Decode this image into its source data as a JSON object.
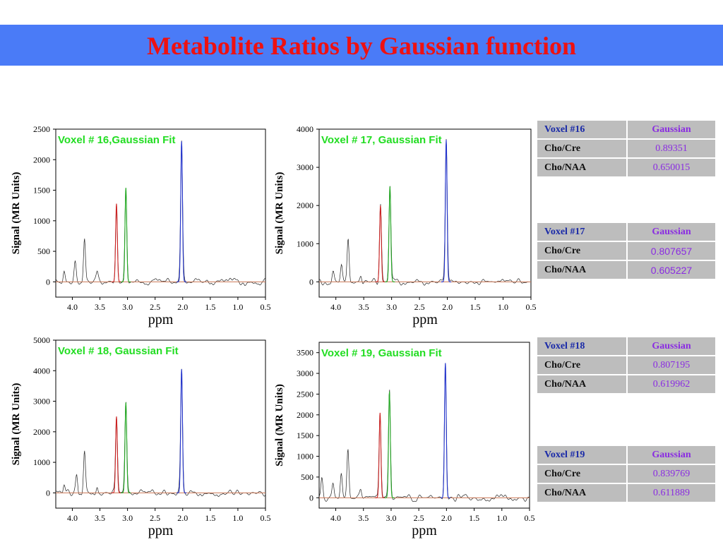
{
  "header": {
    "title": "Metabolite Ratios by Gaussian function"
  },
  "colors": {
    "banner": "#4a7bf7",
    "title": "#ee1111",
    "fit_label": "#22dd22",
    "cho_peak": "#cc2222",
    "cre_peak": "#22aa22",
    "naa_peak": "#2233cc",
    "baseline": "#cc7755",
    "spectrum": "#222222",
    "table_bg": "#bdbdbd",
    "table_value": "#8a2be2",
    "table_voxel": "#1a2aa8"
  },
  "chart_data": [
    {
      "type": "line",
      "title": "Voxel # 16,Gaussian Fit",
      "xlabel": "ppm",
      "ylabel": "Signal (MR Units)",
      "xlim": [
        4.3,
        0.5
      ],
      "x_reversed": true,
      "ylim": [
        -250,
        2500
      ],
      "xticks": [
        4.0,
        3.5,
        3.0,
        2.5,
        2.0,
        1.5,
        1.0,
        0.5
      ],
      "xtick_labels": [
        "4.0",
        "3.5",
        "3.0",
        "2.5",
        "2.0",
        "1.5",
        "1.0",
        "0.5"
      ],
      "yticks": [
        0,
        500,
        1000,
        1500,
        2000,
        2500
      ],
      "peaks": [
        {
          "name": "Cho",
          "ppm": 3.2,
          "height": 1280
        },
        {
          "name": "Cre",
          "ppm": 3.03,
          "height": 1540
        },
        {
          "name": "NAA",
          "ppm": 2.02,
          "height": 2300
        }
      ],
      "other_peaks": [
        {
          "ppm": 4.15,
          "height": 200
        },
        {
          "ppm": 3.95,
          "height": 300
        },
        {
          "ppm": 3.78,
          "height": 720
        },
        {
          "ppm": 3.55,
          "height": 150
        }
      ]
    },
    {
      "type": "line",
      "title": "Voxel # 17, Gaussian Fit",
      "xlabel": "ppm",
      "ylabel": "Signal (MR Units)",
      "xlim": [
        4.3,
        0.5
      ],
      "x_reversed": true,
      "ylim": [
        -400,
        4000
      ],
      "xticks": [
        4.0,
        3.5,
        3.0,
        2.5,
        2.0,
        1.5,
        1.0,
        0.5
      ],
      "xtick_labels": [
        "4.0",
        "3.5",
        "3.0",
        "2.5",
        "2.0",
        "1.5",
        "1.0",
        "0.5"
      ],
      "yticks": [
        0,
        1000,
        2000,
        3000,
        4000
      ],
      "peaks": [
        {
          "name": "Cho",
          "ppm": 3.2,
          "height": 2000
        },
        {
          "name": "Cre",
          "ppm": 3.03,
          "height": 2500
        },
        {
          "name": "NAA",
          "ppm": 2.02,
          "height": 3720
        }
      ],
      "other_peaks": [
        {
          "ppm": 4.05,
          "height": 280
        },
        {
          "ppm": 3.9,
          "height": 450
        },
        {
          "ppm": 3.78,
          "height": 1130
        },
        {
          "ppm": 3.55,
          "height": 200
        }
      ]
    },
    {
      "type": "line",
      "title": "Voxel # 18, Gaussian Fit",
      "xlabel": "ppm",
      "ylabel": "Signal (MR Units)",
      "xlim": [
        4.3,
        0.5
      ],
      "x_reversed": true,
      "ylim": [
        -500,
        5000
      ],
      "xticks": [
        4.0,
        3.5,
        3.0,
        2.5,
        2.0,
        1.5,
        1.0,
        0.5
      ],
      "xtick_labels": [
        "4.0",
        "3.5",
        "3.0",
        "2.5",
        "2.0",
        "1.5",
        "1.0",
        "0.5"
      ],
      "yticks": [
        0,
        1000,
        2000,
        3000,
        4000,
        5000
      ],
      "peaks": [
        {
          "name": "Cho",
          "ppm": 3.2,
          "height": 2500
        },
        {
          "name": "Cre",
          "ppm": 3.03,
          "height": 2960
        },
        {
          "name": "NAA",
          "ppm": 2.02,
          "height": 4050
        }
      ],
      "other_peaks": [
        {
          "ppm": 4.15,
          "height": 350
        },
        {
          "ppm": 3.92,
          "height": 600
        },
        {
          "ppm": 3.78,
          "height": 1380
        },
        {
          "ppm": 3.55,
          "height": 250
        }
      ]
    },
    {
      "type": "line",
      "title": "Voxel # 19, Gaussian Fit",
      "xlabel": "ppm",
      "ylabel": "Signal (MR Units)",
      "xlim": [
        4.3,
        0.5
      ],
      "x_reversed": true,
      "ylim": [
        -250,
        3750
      ],
      "xticks": [
        4.0,
        3.5,
        3.0,
        2.5,
        2.0,
        1.5,
        1.0,
        0.5
      ],
      "xtick_labels": [
        "4.0",
        "3.5",
        "3.0",
        "2.5",
        "2.0",
        "1.5",
        "1.0",
        "0.5"
      ],
      "yticks": [
        0,
        500,
        1000,
        1500,
        2000,
        2500,
        3000,
        3500
      ],
      "peaks": [
        {
          "name": "Cho",
          "ppm": 3.2,
          "height": 2050
        },
        {
          "name": "Cre",
          "ppm": 3.03,
          "height": 2560
        },
        {
          "name": "NAA",
          "ppm": 2.02,
          "height": 3250
        }
      ],
      "other_peaks": [
        {
          "ppm": 4.25,
          "height": 500
        },
        {
          "ppm": 4.05,
          "height": 350
        },
        {
          "ppm": 3.9,
          "height": 600
        },
        {
          "ppm": 3.78,
          "height": 1180
        },
        {
          "ppm": 3.55,
          "height": 200
        }
      ]
    }
  ],
  "tables": [
    {
      "voxel": "Voxel #16",
      "method": "Gaussian",
      "rows": [
        {
          "label": "Cho/Cre",
          "value": "0.89351"
        },
        {
          "label": "Cho/NAA",
          "value": "0.650015"
        }
      ]
    },
    {
      "voxel": "Voxel #17",
      "method": "Gaussian",
      "rows": [
        {
          "label": "Cho/Cre",
          "value": "0.807657"
        },
        {
          "label": "Cho/NAA",
          "value": "0.605227"
        }
      ]
    },
    {
      "voxel": "Voxel #18",
      "method": "Gaussian",
      "rows": [
        {
          "label": "Cho/Cre",
          "value": "0.807195"
        },
        {
          "label": "Cho/NAA",
          "value": "0.619962"
        }
      ]
    },
    {
      "voxel": "Voxel #19",
      "method": "Gaussian",
      "rows": [
        {
          "label": "Cho/Cre",
          "value": "0.839769"
        },
        {
          "label": "Cho/NAA",
          "value": "0.611889"
        }
      ]
    }
  ]
}
